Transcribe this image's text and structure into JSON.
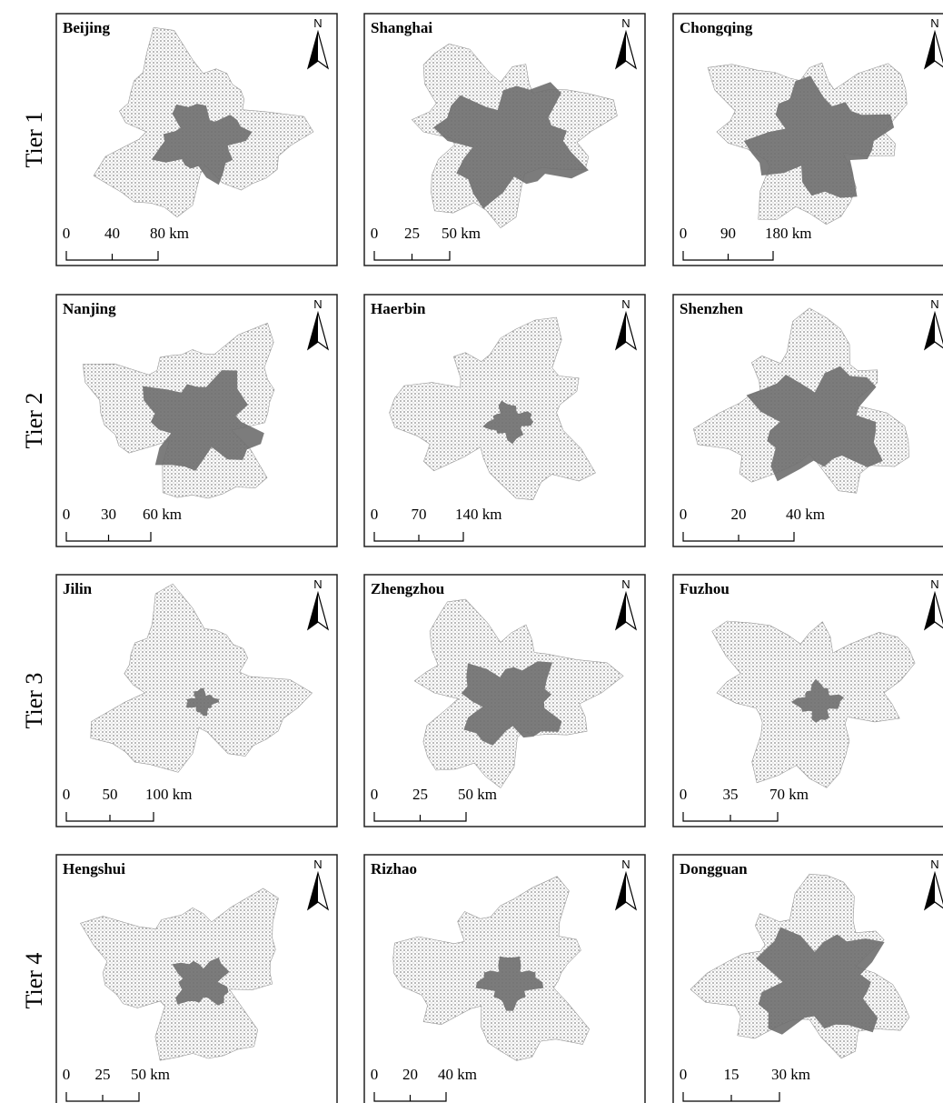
{
  "rows": [
    {
      "label": "Tier 1",
      "panels": [
        {
          "city": "Beijing",
          "north": "N",
          "scale": [
            "0",
            "40",
            "80 km"
          ]
        },
        {
          "city": "Shanghai",
          "north": "N",
          "scale": [
            "0",
            "25",
            "50 km"
          ]
        },
        {
          "city": "Chongqing",
          "north": "N",
          "scale": [
            "0",
            "90",
            "180 km"
          ]
        }
      ]
    },
    {
      "label": "Tier 2",
      "panels": [
        {
          "city": "Nanjing",
          "north": "N",
          "scale": [
            "0",
            "30",
            "60 km"
          ]
        },
        {
          "city": "Haerbin",
          "north": "N",
          "scale": [
            "0",
            "70",
            "140 km"
          ]
        },
        {
          "city": "Shenzhen",
          "north": "N",
          "scale": [
            "0",
            "20",
            "40 km"
          ]
        }
      ]
    },
    {
      "label": "Tier 3",
      "panels": [
        {
          "city": "Jilin",
          "north": "N",
          "scale": [
            "0",
            "50",
            "100 km"
          ]
        },
        {
          "city": "Zhengzhou",
          "north": "N",
          "scale": [
            "0",
            "25",
            "50 km"
          ]
        },
        {
          "city": "Fuzhou",
          "north": "N",
          "scale": [
            "0",
            "35",
            "70 km"
          ]
        }
      ]
    },
    {
      "label": "Tier 4",
      "panels": [
        {
          "city": "Hengshui",
          "north": "N",
          "scale": [
            "0",
            "25",
            "50 km"
          ]
        },
        {
          "city": "Rizhao",
          "north": "N",
          "scale": [
            "0",
            "20",
            "40 km"
          ]
        },
        {
          "city": "Dongguan",
          "north": "N",
          "scale": [
            "0",
            "15",
            "30 km"
          ]
        }
      ]
    }
  ]
}
